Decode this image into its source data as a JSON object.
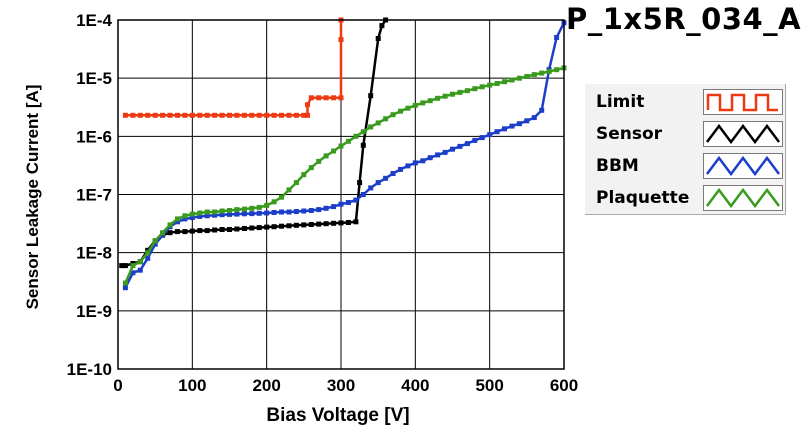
{
  "chart_data": {
    "type": "line",
    "title": "P_1x5R_034_A",
    "xlabel": "Bias Voltage [V]",
    "ylabel": "Sensor Leakage Current [A]",
    "xlim": [
      0,
      600
    ],
    "ylim": [
      1e-10,
      0.0001
    ],
    "yscale": "log",
    "grid": true,
    "legend_position": "right",
    "x_ticks": [
      "0",
      "100",
      "200",
      "300",
      "400",
      "500",
      "600"
    ],
    "y_ticks": [
      "1E-10",
      "1E-9",
      "1E-8",
      "1E-7",
      "1E-6",
      "1E-5",
      "1E-4"
    ],
    "series": [
      {
        "name": "Limit",
        "color": "#ee3a12",
        "icon": "square-wave-icon",
        "x": [
          10,
          20,
          30,
          40,
          50,
          60,
          70,
          80,
          90,
          100,
          110,
          120,
          130,
          140,
          150,
          160,
          170,
          180,
          190,
          200,
          210,
          220,
          230,
          240,
          250,
          255,
          255,
          260,
          270,
          280,
          290,
          300,
          300,
          300
        ],
        "y": [
          2.3e-06,
          2.3e-06,
          2.3e-06,
          2.3e-06,
          2.3e-06,
          2.3e-06,
          2.3e-06,
          2.3e-06,
          2.3e-06,
          2.3e-06,
          2.3e-06,
          2.3e-06,
          2.3e-06,
          2.3e-06,
          2.3e-06,
          2.3e-06,
          2.3e-06,
          2.3e-06,
          2.3e-06,
          2.3e-06,
          2.3e-06,
          2.3e-06,
          2.3e-06,
          2.3e-06,
          2.3e-06,
          2.3e-06,
          3.5e-06,
          4.6e-06,
          4.6e-06,
          4.6e-06,
          4.6e-06,
          4.6e-06,
          4.6e-05,
          0.0001
        ]
      },
      {
        "name": "Sensor",
        "color": "#000000",
        "icon": "triangle-wave-icon",
        "x": [
          5,
          10,
          20,
          30,
          40,
          50,
          60,
          70,
          80,
          90,
          100,
          110,
          120,
          130,
          140,
          150,
          160,
          170,
          180,
          190,
          200,
          210,
          220,
          230,
          240,
          250,
          260,
          270,
          280,
          290,
          300,
          310,
          320,
          325,
          330,
          340,
          350,
          355,
          360
        ],
        "y": [
          6e-09,
          6e-09,
          6.5e-09,
          7e-09,
          1.1e-08,
          1.6e-08,
          2e-08,
          2.2e-08,
          2.3e-08,
          2.3e-08,
          2.35e-08,
          2.4e-08,
          2.4e-08,
          2.45e-08,
          2.5e-08,
          2.5e-08,
          2.55e-08,
          2.6e-08,
          2.65e-08,
          2.7e-08,
          2.75e-08,
          2.8e-08,
          2.85e-08,
          2.9e-08,
          2.95e-08,
          3e-08,
          3.05e-08,
          3.1e-08,
          3.15e-08,
          3.2e-08,
          3.25e-08,
          3.3e-08,
          3.4e-08,
          1.6e-07,
          7e-07,
          5e-06,
          4.8e-05,
          8e-05,
          0.0001
        ]
      },
      {
        "name": "BBM",
        "color": "#1d3ec8",
        "icon": "triangle-wave-icon",
        "x": [
          10,
          20,
          30,
          40,
          50,
          60,
          70,
          80,
          90,
          100,
          110,
          120,
          130,
          140,
          150,
          160,
          170,
          180,
          190,
          200,
          210,
          220,
          230,
          240,
          250,
          260,
          270,
          280,
          290,
          300,
          310,
          320,
          330,
          340,
          350,
          360,
          370,
          380,
          390,
          400,
          410,
          420,
          430,
          440,
          450,
          460,
          470,
          480,
          490,
          500,
          510,
          520,
          530,
          540,
          550,
          560,
          570,
          580,
          590,
          600
        ],
        "y": [
          2.5e-09,
          4.5e-09,
          5e-09,
          8e-09,
          1.4e-08,
          2e-08,
          2.8e-08,
          3.4e-08,
          3.8e-08,
          4e-08,
          4.2e-08,
          4.3e-08,
          4.4e-08,
          4.5e-08,
          4.55e-08,
          4.6e-08,
          4.65e-08,
          4.7e-08,
          4.75e-08,
          4.8e-08,
          4.9e-08,
          5e-08,
          5e-08,
          5.1e-08,
          5.2e-08,
          5.3e-08,
          5.5e-08,
          5.8e-08,
          6.2e-08,
          6.8e-08,
          7.3e-08,
          8e-08,
          1e-07,
          1.3e-07,
          1.6e-07,
          1.9e-07,
          2.3e-07,
          2.7e-07,
          3.1e-07,
          3.5e-07,
          3.8e-07,
          4.3e-07,
          4.8e-07,
          5.3e-07,
          6e-07,
          6.7e-07,
          7.5e-07,
          8.5e-07,
          9.5e-07,
          1.07e-06,
          1.2e-06,
          1.35e-06,
          1.5e-06,
          1.65e-06,
          1.85e-06,
          2.1e-06,
          2.8e-06,
          1.4e-05,
          5e-05,
          9e-05
        ]
      },
      {
        "name": "Plaquette",
        "color": "#3a9a1e",
        "icon": "triangle-wave-icon",
        "x": [
          10,
          20,
          30,
          40,
          50,
          60,
          70,
          80,
          90,
          100,
          110,
          120,
          130,
          140,
          150,
          160,
          170,
          180,
          190,
          200,
          210,
          220,
          230,
          240,
          250,
          260,
          270,
          280,
          290,
          300,
          310,
          320,
          330,
          340,
          350,
          360,
          370,
          380,
          390,
          400,
          410,
          420,
          430,
          440,
          450,
          460,
          470,
          480,
          490,
          500,
          510,
          520,
          530,
          540,
          550,
          560,
          570,
          580,
          590,
          600
        ],
        "y": [
          3e-09,
          6e-09,
          7e-09,
          1e-08,
          1.6e-08,
          2.2e-08,
          3e-08,
          3.8e-08,
          4.3e-08,
          4.6e-08,
          4.8e-08,
          5e-08,
          5e-08,
          5.2e-08,
          5.3e-08,
          5.5e-08,
          5.6e-08,
          5.8e-08,
          6e-08,
          6.5e-08,
          7.5e-08,
          9e-08,
          1.2e-07,
          1.6e-07,
          2.2e-07,
          2.9e-07,
          3.7e-07,
          4.6e-07,
          5.6e-07,
          6.8e-07,
          8.2e-07,
          1e-06,
          1.2e-06,
          1.45e-06,
          1.7e-06,
          2e-06,
          2.35e-06,
          2.7e-06,
          3.05e-06,
          3.4e-06,
          3.75e-06,
          4.1e-06,
          4.5e-06,
          4.9e-06,
          5.3e-06,
          5.7e-06,
          6.1e-06,
          6.6e-06,
          7.1e-06,
          7.6e-06,
          8.1e-06,
          8.7e-06,
          9.3e-06,
          1e-05,
          1.07e-05,
          1.15e-05,
          1.22e-05,
          1.3e-05,
          1.4e-05,
          1.5e-05
        ]
      }
    ]
  }
}
